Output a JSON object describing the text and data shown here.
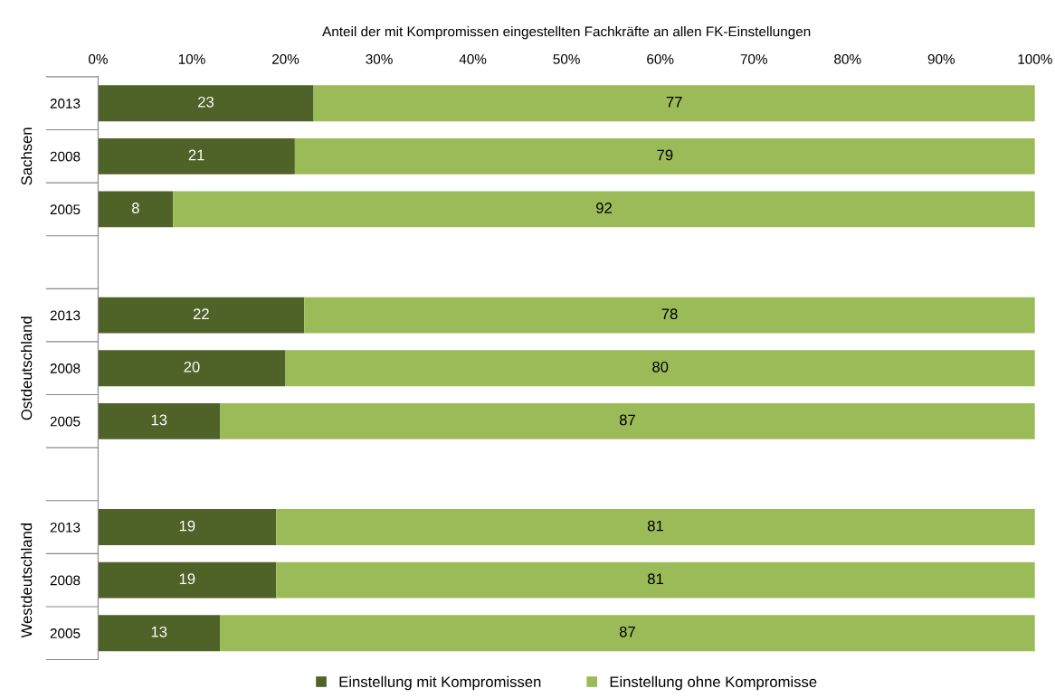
{
  "chart_data": {
    "type": "bar",
    "orientation": "horizontal",
    "stacked": true,
    "xlabel": "Anteil der mit Kompromissen eingestellten Fachkräfte an allen FK-Einstellungen",
    "categories": [
      "2013",
      "2008",
      "2005",
      null,
      "2013",
      "2008",
      "2005",
      null,
      "2013",
      "2008",
      "2005"
    ],
    "series": [
      {
        "name": "Einstellung mit Kompromissen",
        "color": "#4f6228",
        "values": [
          23,
          21,
          8,
          null,
          22,
          20,
          13,
          null,
          19,
          19,
          13
        ]
      },
      {
        "name": "Einstellung ohne Kompromisse",
        "color": "#9bbb59",
        "values": [
          77,
          79,
          92,
          null,
          78,
          80,
          87,
          null,
          81,
          81,
          87
        ]
      }
    ],
    "xlim": [
      0,
      100
    ],
    "xticks": [
      {
        "value": 0,
        "label": "0%"
      },
      {
        "value": 10,
        "label": "10%"
      },
      {
        "value": 20,
        "label": "20%"
      },
      {
        "value": 30,
        "label": "30%"
      },
      {
        "value": 40,
        "label": "40%"
      },
      {
        "value": 50,
        "label": "50%"
      },
      {
        "value": 60,
        "label": "60%"
      },
      {
        "value": 70,
        "label": "70%"
      },
      {
        "value": 80,
        "label": "80%"
      },
      {
        "value": 90,
        "label": "90%"
      },
      {
        "value": 100,
        "label": "100%"
      }
    ],
    "annotations": [
      "Sachsen",
      "Ostdeutschland",
      "Westdeutschland"
    ],
    "data_labels": true,
    "legend": "bottom",
    "grid": false
  }
}
